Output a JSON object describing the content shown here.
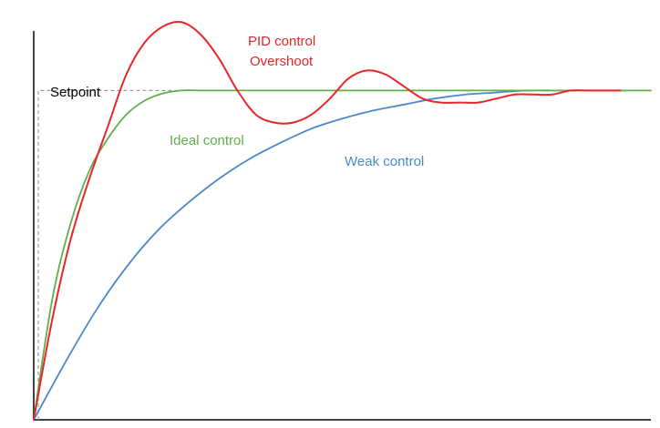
{
  "chart_data": {
    "type": "line",
    "title": "",
    "xlabel": "",
    "ylabel": "",
    "xlim": [
      0,
      100
    ],
    "ylim": [
      0,
      100
    ],
    "grid": false,
    "setpoint": {
      "label": "Setpoint",
      "value": 82,
      "color": "#888888"
    },
    "series": [
      {
        "key": "pid",
        "labels": [
          "PID control",
          "Overshoot"
        ],
        "color": "#e8262a",
        "x": [
          0,
          3,
          6,
          9,
          12,
          15,
          18,
          21,
          24,
          27,
          30,
          33,
          36,
          39,
          42,
          45,
          48,
          51,
          54,
          57,
          60,
          63,
          66,
          69,
          72,
          75,
          78,
          81,
          84,
          87,
          90,
          93,
          95
        ],
        "y": [
          0,
          25,
          45,
          60,
          73,
          86,
          94,
          98,
          99,
          96,
          90,
          82,
          76,
          74,
          74,
          76,
          80,
          85,
          87,
          86,
          83,
          80,
          79,
          79,
          79,
          80,
          81,
          81,
          81,
          82,
          82,
          82,
          82
        ]
      },
      {
        "key": "ideal",
        "labels": [
          "Ideal control"
        ],
        "color": "#5fb04a",
        "x": [
          0,
          3,
          6,
          9,
          12,
          15,
          18,
          21,
          24,
          27,
          30,
          35,
          45,
          60,
          80,
          100
        ],
        "y": [
          0,
          30,
          49,
          62,
          70,
          76,
          79.5,
          81.3,
          82,
          82,
          82,
          82,
          82,
          82,
          82,
          82
        ]
      },
      {
        "key": "weak",
        "labels": [
          "Weak control"
        ],
        "color": "#4a88cc",
        "x": [
          0,
          5,
          10,
          15,
          20,
          25,
          30,
          35,
          40,
          45,
          50,
          55,
          60,
          65,
          70,
          75,
          80,
          85,
          90,
          96
        ],
        "y": [
          0,
          14,
          27,
          38,
          47,
          54,
          60,
          65,
          69,
          72.5,
          75,
          77,
          78.5,
          80,
          81,
          81.5,
          82,
          82,
          82,
          82
        ]
      }
    ]
  }
}
